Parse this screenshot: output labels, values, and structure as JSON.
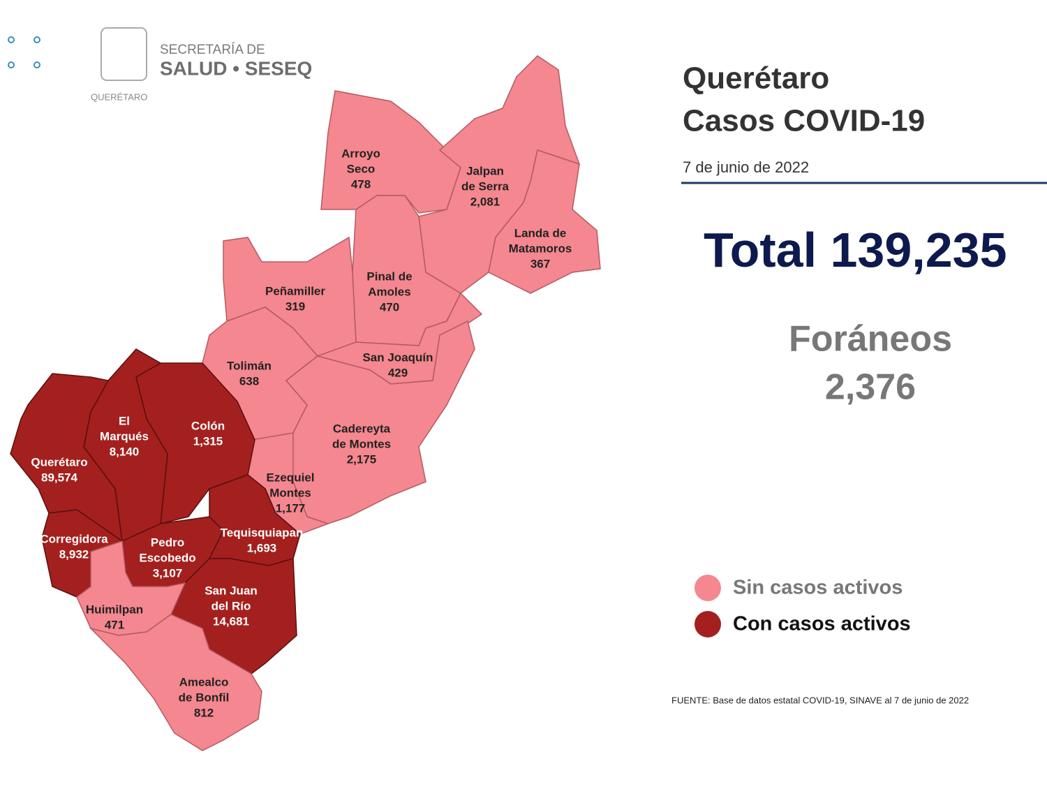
{
  "logo": {
    "line1": "SECRETARÍA DE",
    "line2": "SALUD • SESEQ",
    "state": "QUERÉTARO"
  },
  "header": {
    "title_lines": [
      "Querétaro",
      "Casos COVID-19"
    ],
    "date": "7 de junio de 2022"
  },
  "total": {
    "label": "Total",
    "value": "139,235"
  },
  "foraneos": {
    "label": "Foráneos",
    "value": "2,376"
  },
  "legend": [
    {
      "label": "Sin casos activos",
      "color": "#f4878f"
    },
    {
      "label": "Con casos activos",
      "color": "#a3201e"
    }
  ],
  "source": "FUENTE: Base de datos estatal COVID-19, SINAVE al 7 de junio de 2022",
  "municipalities": [
    {
      "name_lines": [
        "Arroyo",
        "Seco"
      ],
      "cases": "478",
      "active": false
    },
    {
      "name_lines": [
        "Jalpan",
        "de Serra"
      ],
      "cases": "2,081",
      "active": false
    },
    {
      "name_lines": [
        "Landa de",
        "Matamoros"
      ],
      "cases": "367",
      "active": false
    },
    {
      "name_lines": [
        "Pinal de",
        "Amoles"
      ],
      "cases": "470",
      "active": false
    },
    {
      "name_lines": [
        "Peñamiller"
      ],
      "cases": "319",
      "active": false
    },
    {
      "name_lines": [
        "Tolimán"
      ],
      "cases": "638",
      "active": false
    },
    {
      "name_lines": [
        "San Joaquín"
      ],
      "cases": "429",
      "active": false
    },
    {
      "name_lines": [
        "Cadereyta",
        "de Montes"
      ],
      "cases": "2,175",
      "active": false
    },
    {
      "name_lines": [
        "Ezequiel",
        "Montes"
      ],
      "cases": "1,177",
      "active": false
    },
    {
      "name_lines": [
        "Colón"
      ],
      "cases": "1,315",
      "active": true
    },
    {
      "name_lines": [
        "El",
        "Marqués"
      ],
      "cases": "8,140",
      "active": true
    },
    {
      "name_lines": [
        "Querétaro"
      ],
      "cases": "89,574",
      "active": true
    },
    {
      "name_lines": [
        "Corregidora"
      ],
      "cases": "8,932",
      "active": true
    },
    {
      "name_lines": [
        "Pedro",
        "Escobedo"
      ],
      "cases": "3,107",
      "active": true
    },
    {
      "name_lines": [
        "Tequisquiapan"
      ],
      "cases": "1,693",
      "active": true
    },
    {
      "name_lines": [
        "San Juan",
        "del Río"
      ],
      "cases": "14,681",
      "active": true
    },
    {
      "name_lines": [
        "Huimilpan"
      ],
      "cases": "471",
      "active": false
    },
    {
      "name_lines": [
        "Amealco",
        "de Bonfil"
      ],
      "cases": "812",
      "active": false
    }
  ]
}
